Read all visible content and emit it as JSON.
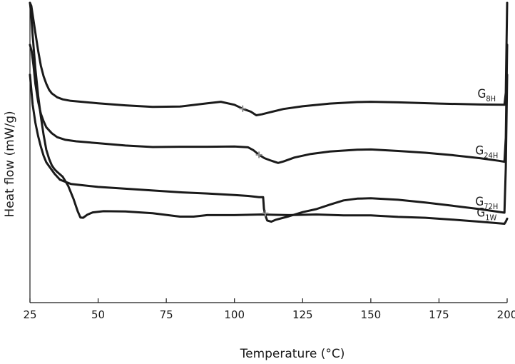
{
  "chart_data": {
    "type": "line",
    "xlabel": "Temperature (°C)",
    "ylabel": "Heat flow (mW/g)",
    "xlim": [
      25,
      200
    ],
    "ylim": [
      0,
      100
    ],
    "x_ticks": [
      25,
      50,
      75,
      100,
      125,
      150,
      175,
      200
    ],
    "y_ticks_shown": false,
    "colors": {
      "line": "#1a1a1a",
      "tg_marker": "#8a8a8a",
      "axis": "#1a1a1a"
    },
    "series": [
      {
        "name": "G8H",
        "label_main": "G",
        "label_sub": "8H",
        "points": [
          [
            25,
            100
          ],
          [
            25.5,
            99
          ],
          [
            26,
            96
          ],
          [
            27,
            90
          ],
          [
            28,
            84
          ],
          [
            29,
            79
          ],
          [
            30,
            75.5
          ],
          [
            31,
            73
          ],
          [
            32,
            71
          ],
          [
            33,
            69.8
          ],
          [
            35,
            68.5
          ],
          [
            37,
            67.8
          ],
          [
            40,
            67.3
          ],
          [
            50,
            66.5
          ],
          [
            60,
            65.8
          ],
          [
            70,
            65.3
          ],
          [
            80,
            65.4
          ],
          [
            90,
            66.5
          ],
          [
            95,
            67
          ],
          [
            100,
            66
          ],
          [
            103,
            64.7
          ],
          [
            106,
            63.7
          ],
          [
            108,
            62.5
          ],
          [
            110,
            62.8
          ],
          [
            113,
            63.5
          ],
          [
            118,
            64.6
          ],
          [
            125,
            65.5
          ],
          [
            135,
            66.4
          ],
          [
            145,
            66.9
          ],
          [
            150,
            67
          ],
          [
            160,
            66.8
          ],
          [
            175,
            66.4
          ],
          [
            190,
            66.1
          ],
          [
            199,
            66
          ],
          [
            199.5,
            70
          ],
          [
            200,
            100
          ]
        ],
        "tg_marker": [
          103,
          64.7
        ]
      },
      {
        "name": "G24H",
        "label_main": "G",
        "label_sub": "24H",
        "points": [
          [
            25,
            86
          ],
          [
            25.6,
            84
          ],
          [
            26.3,
            79
          ],
          [
            27,
            73
          ],
          [
            28,
            67
          ],
          [
            29,
            63
          ],
          [
            30,
            60.5
          ],
          [
            31,
            58.5
          ],
          [
            33,
            56.5
          ],
          [
            35,
            55.2
          ],
          [
            38,
            54.3
          ],
          [
            42,
            53.8
          ],
          [
            50,
            53.2
          ],
          [
            60,
            52.4
          ],
          [
            70,
            51.9
          ],
          [
            80,
            52
          ],
          [
            90,
            52
          ],
          [
            100,
            52.1
          ],
          [
            105,
            51.8
          ],
          [
            107,
            50.8
          ],
          [
            109,
            49.3
          ],
          [
            111,
            48.2
          ],
          [
            113,
            47.5
          ],
          [
            116,
            46.6
          ],
          [
            118,
            47.1
          ],
          [
            122,
            48.4
          ],
          [
            128,
            49.6
          ],
          [
            135,
            50.4
          ],
          [
            145,
            51
          ],
          [
            150,
            51.1
          ],
          [
            160,
            50.6
          ],
          [
            170,
            50
          ],
          [
            180,
            49.2
          ],
          [
            190,
            48.2
          ],
          [
            197,
            47.3
          ],
          [
            199,
            47
          ],
          [
            199.5,
            55
          ],
          [
            200,
            86
          ]
        ],
        "tg_marker": [
          109,
          49.3
        ]
      },
      {
        "name": "G72H",
        "label_main": "G",
        "label_sub": "72H",
        "points": [
          [
            25,
            76
          ],
          [
            25.5,
            71
          ],
          [
            26,
            66
          ],
          [
            27,
            60
          ],
          [
            28,
            55.5
          ],
          [
            29,
            52
          ],
          [
            30,
            49
          ],
          [
            31,
            46.8
          ],
          [
            32,
            45.5
          ],
          [
            34,
            43
          ],
          [
            36,
            41
          ],
          [
            40,
            39.6
          ],
          [
            50,
            38.6
          ],
          [
            60,
            38
          ],
          [
            70,
            37.4
          ],
          [
            80,
            36.8
          ],
          [
            90,
            36.4
          ],
          [
            100,
            35.9
          ],
          [
            105,
            35.6
          ],
          [
            109,
            35.2
          ],
          [
            110.5,
            35.2
          ],
          [
            110.8,
            31.4
          ],
          [
            111.2,
            29.4
          ],
          [
            112,
            27.4
          ],
          [
            113.5,
            27
          ],
          [
            115,
            27.6
          ],
          [
            120,
            28.8
          ],
          [
            125,
            30.2
          ],
          [
            130,
            31.2
          ],
          [
            135,
            32.7
          ],
          [
            140,
            34.1
          ],
          [
            145,
            34.7
          ],
          [
            150,
            34.8
          ],
          [
            160,
            34.3
          ],
          [
            170,
            33.4
          ],
          [
            180,
            32.3
          ],
          [
            190,
            31.2
          ],
          [
            199,
            30
          ],
          [
            199.5,
            45
          ],
          [
            200,
            76
          ]
        ],
        "tg_marker": [
          111.3,
          29.8
        ]
      },
      {
        "name": "G1W",
        "label_main": "G",
        "label_sub": "1W",
        "points": [
          [
            25,
            100
          ],
          [
            25.4,
            97
          ],
          [
            26,
            89
          ],
          [
            27,
            78
          ],
          [
            28,
            69
          ],
          [
            29,
            62
          ],
          [
            30,
            56
          ],
          [
            31,
            51
          ],
          [
            32,
            48
          ],
          [
            33,
            45.8
          ],
          [
            34,
            44.5
          ],
          [
            35,
            43.6
          ],
          [
            37,
            42
          ],
          [
            39,
            39
          ],
          [
            41,
            34.5
          ],
          [
            42.5,
            30.5
          ],
          [
            43.5,
            28.4
          ],
          [
            44.5,
            28.3
          ],
          [
            46,
            29.3
          ],
          [
            48,
            30.1
          ],
          [
            52,
            30.5
          ],
          [
            60,
            30.4
          ],
          [
            70,
            29.8
          ],
          [
            80,
            28.7
          ],
          [
            85,
            28.7
          ],
          [
            90,
            29.2
          ],
          [
            100,
            29.2
          ],
          [
            110,
            29.4
          ],
          [
            120,
            29.2
          ],
          [
            130,
            29.4
          ],
          [
            140,
            29.1
          ],
          [
            150,
            29.1
          ],
          [
            160,
            28.6
          ],
          [
            170,
            28.3
          ],
          [
            180,
            27.7
          ],
          [
            190,
            27
          ],
          [
            199,
            26.3
          ],
          [
            199.5,
            27
          ],
          [
            200,
            28
          ]
        ],
        "tg_marker": null
      }
    ]
  }
}
